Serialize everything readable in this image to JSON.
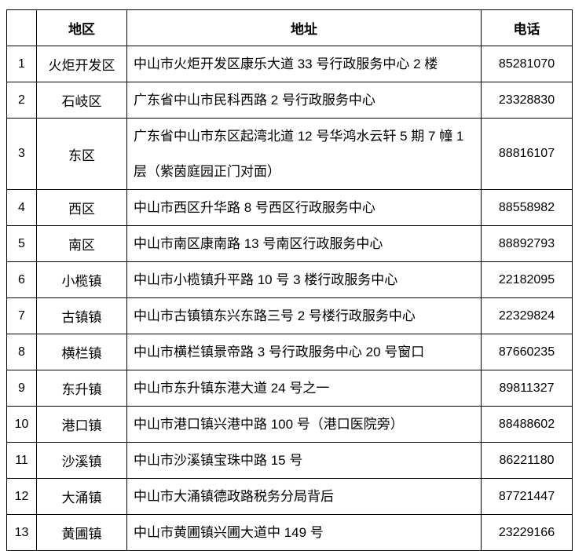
{
  "headers": {
    "index": "",
    "region": "地区",
    "address": "地址",
    "phone": "电话"
  },
  "rows": [
    {
      "index": "1",
      "region": "火炬开发区",
      "address": "中山市火炬开发区康乐大道 33 号行政服务中心 2 楼",
      "phone": "85281070"
    },
    {
      "index": "2",
      "region": "石岐区",
      "address": "广东省中山市民科西路 2 号行政服务中心",
      "phone": "23328830"
    },
    {
      "index": "3",
      "region": "东区",
      "address": "广东省中山市东区起湾北道 12 号华鸿水云轩 5 期 7 幢 1 层（紫茵庭园正门对面）",
      "phone": "88816107"
    },
    {
      "index": "4",
      "region": "西区",
      "address": "中山市西区升华路 8 号西区行政服务中心",
      "phone": "88558982"
    },
    {
      "index": "5",
      "region": "南区",
      "address": "中山市南区康南路 13 号南区行政服务中心",
      "phone": "88892793"
    },
    {
      "index": "6",
      "region": "小榄镇",
      "address": "中山市小榄镇升平路 10 号 3 楼行政服务中心",
      "phone": "22182095"
    },
    {
      "index": "7",
      "region": "古镇镇",
      "address": "中山市古镇镇东兴东路三号 2 号楼行政服务中心",
      "phone": "22329824"
    },
    {
      "index": "8",
      "region": "横栏镇",
      "address": "中山市横栏镇景帝路 3 号行政服务中心 20 号窗口",
      "phone": "87660235"
    },
    {
      "index": "9",
      "region": "东升镇",
      "address": "中山市东升镇东港大道 24 号之一",
      "phone": "89811327"
    },
    {
      "index": "10",
      "region": "港口镇",
      "address": "中山市港口镇兴港中路 100 号（港口医院旁）",
      "phone": "88488602"
    },
    {
      "index": "11",
      "region": "沙溪镇",
      "address": "中山市沙溪镇宝珠中路 15 号",
      "phone": "86221180"
    },
    {
      "index": "12",
      "region": "大涌镇",
      "address": "中山市大涌镇德政路税务分局背后",
      "phone": "87721447"
    },
    {
      "index": "13",
      "region": "黄圃镇",
      "address": "中山市黄圃镇兴圃大道中 149 号",
      "phone": "23229166"
    }
  ]
}
